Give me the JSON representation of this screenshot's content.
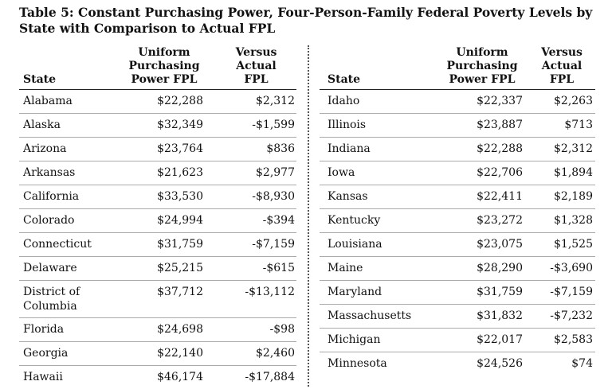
{
  "title": "Table 5: Constant Purchasing Power, Four-Person-Family Federal Poverty Levels by State with Comparison to Actual FPL",
  "headers": {
    "state": "State",
    "col1": [
      "Uniform",
      "Purchasing",
      "Power FPL"
    ],
    "col2": [
      "Versus",
      "Actual",
      "FPL"
    ]
  },
  "left_rows": [
    {
      "state": "Alabama",
      "fpl": "$22,288",
      "diff": "$2,312"
    },
    {
      "state": "Alaska",
      "fpl": "$32,349",
      "diff": "-$1,599"
    },
    {
      "state": "Arizona",
      "fpl": "$23,764",
      "diff": "$836"
    },
    {
      "state": "Arkansas",
      "fpl": "$21,623",
      "diff": "$2,977"
    },
    {
      "state": "California",
      "fpl": "$33,530",
      "diff": "-$8,930"
    },
    {
      "state": "Colorado",
      "fpl": "$24,994",
      "diff": "-$394"
    },
    {
      "state": "Connecticut",
      "fpl": "$31,759",
      "diff": "-$7,159"
    },
    {
      "state": "Delaware",
      "fpl": "$25,215",
      "diff": "-$615"
    },
    {
      "state": "District of",
      "state2": "Columbia",
      "fpl": "$37,712",
      "diff": "-$13,112"
    },
    {
      "state": "Florida",
      "fpl": "$24,698",
      "diff": "-$98"
    },
    {
      "state": "Georgia",
      "fpl": "$22,140",
      "diff": "$2,460"
    },
    {
      "state": "Hawaii",
      "fpl": "$46,174",
      "diff": "-$17,884"
    }
  ],
  "right_rows": [
    {
      "state": "Idaho",
      "fpl": "$22,337",
      "diff": "$2,263"
    },
    {
      "state": "Illinois",
      "fpl": "$23,887",
      "diff": "$713"
    },
    {
      "state": "Indiana",
      "fpl": "$22,288",
      "diff": "$2,312"
    },
    {
      "state": "Iowa",
      "fpl": "$22,706",
      "diff": "$1,894"
    },
    {
      "state": "Kansas",
      "fpl": "$22,411",
      "diff": "$2,189"
    },
    {
      "state": "Kentucky",
      "fpl": "$23,272",
      "diff": "$1,328"
    },
    {
      "state": "Louisiana",
      "fpl": "$23,075",
      "diff": "$1,525"
    },
    {
      "state": "Maine",
      "fpl": "$28,290",
      "diff": "-$3,690"
    },
    {
      "state": "Maryland",
      "fpl": "$31,759",
      "diff": "-$7,159"
    },
    {
      "state": "Massachusetts",
      "fpl": "$31,832",
      "diff": "-$7,232"
    },
    {
      "state": "Michigan",
      "fpl": "$22,017",
      "diff": "$2,583"
    },
    {
      "state": "Minnesota",
      "fpl": "$24,526",
      "diff": "$74"
    }
  ]
}
